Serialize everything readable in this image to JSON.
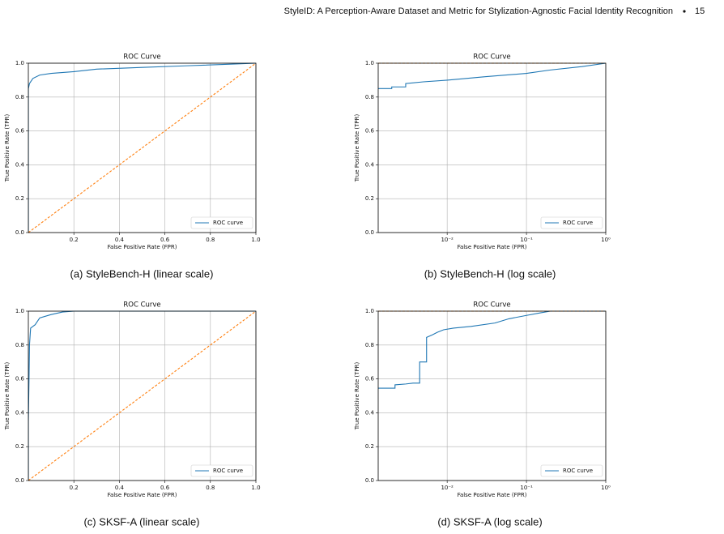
{
  "header": {
    "title": "StyleID: A Perception-Aware Dataset and Metric for Stylization-Agnostic Facial Identity Recognition",
    "page": "15"
  },
  "chart_data": [
    {
      "type": "line",
      "title": "ROC Curve",
      "caption": "(a) StyleBench-H (linear scale)",
      "xlabel": "False Positive Rate (FPR)",
      "ylabel": "True Positive Rate (TPR)",
      "xscale": "linear",
      "xlim": [
        0,
        1
      ],
      "ylim": [
        0,
        1
      ],
      "grid": true,
      "legend": "lower right",
      "xticks": [
        0.2,
        0.4,
        0.6,
        0.8,
        {
          "value": 1,
          "label": "1.0"
        }
      ],
      "yticks": [
        {
          "value": 0,
          "label": "0.0"
        },
        0.2,
        0.4,
        0.6,
        0.8,
        {
          "value": 1,
          "label": "1.0"
        }
      ],
      "series": [
        {
          "name": "ROC curve",
          "color": "#1f77b4",
          "x": [
            0,
            0,
            0.005,
            0.02,
            0.05,
            0.1,
            0.2,
            0.3,
            0.5,
            0.7,
            0.9,
            1
          ],
          "values": [
            0,
            0.85,
            0.88,
            0.91,
            0.93,
            0.94,
            0.95,
            0.965,
            0.975,
            0.985,
            0.995,
            1
          ]
        },
        {
          "color": "#ff7f0e",
          "dash": true,
          "x": [
            0,
            1
          ],
          "values": [
            0,
            1
          ]
        }
      ]
    },
    {
      "type": "line",
      "title": "ROC Curve",
      "caption": "(b) StyleBench-H (log scale)",
      "xlabel": "False Positive Rate (FPR)",
      "ylabel": "True Positive Rate (TPR)",
      "xscale": "log",
      "xlim": [
        0.00135,
        1
      ],
      "ylim": [
        0,
        1
      ],
      "grid": true,
      "legend": "lower right",
      "xticks": [
        {
          "value": 0.01,
          "label": "10⁻²"
        },
        {
          "value": 0.1,
          "label": "10⁻¹"
        },
        {
          "value": 1,
          "label": "10⁰"
        }
      ],
      "yticks": [
        {
          "value": 0,
          "label": "0.0"
        },
        0.2,
        0.4,
        0.6,
        0.8,
        {
          "value": 1,
          "label": "1.0"
        }
      ],
      "series": [
        {
          "name": "ROC curve",
          "color": "#1f77b4",
          "x": [
            0.00135,
            0.002,
            0.002,
            0.003,
            0.003,
            0.005,
            0.01,
            0.03,
            0.1,
            0.2,
            0.5,
            1
          ],
          "values": [
            0.85,
            0.85,
            0.86,
            0.86,
            0.88,
            0.89,
            0.9,
            0.92,
            0.94,
            0.96,
            0.98,
            1
          ]
        },
        {
          "color": "#ff7f0e",
          "dash": true,
          "x": [
            0.00135,
            1
          ],
          "values": [
            1,
            1
          ]
        }
      ]
    },
    {
      "type": "line",
      "title": "ROC Curve",
      "caption": "(c) SKSF-A (linear scale)",
      "xlabel": "False Positive Rate (FPR)",
      "ylabel": "True Positive Rate (TPR)",
      "xscale": "linear",
      "xlim": [
        0,
        1
      ],
      "ylim": [
        0,
        1
      ],
      "grid": true,
      "legend": "lower right",
      "xticks": [
        0.2,
        0.4,
        0.6,
        0.8,
        {
          "value": 1,
          "label": "1.0"
        }
      ],
      "yticks": [
        {
          "value": 0,
          "label": "0.0"
        },
        0.2,
        0.4,
        0.6,
        0.8,
        {
          "value": 1,
          "label": "1.0"
        }
      ],
      "series": [
        {
          "name": "ROC curve",
          "color": "#1f77b4",
          "x": [
            0,
            0,
            0.003,
            0.005,
            0.01,
            0.03,
            0.05,
            0.1,
            0.15,
            0.2,
            1
          ],
          "values": [
            0,
            0.35,
            0.6,
            0.8,
            0.9,
            0.92,
            0.96,
            0.98,
            0.995,
            1,
            1
          ]
        },
        {
          "color": "#ff7f0e",
          "dash": true,
          "x": [
            0,
            1
          ],
          "values": [
            0,
            1
          ]
        }
      ]
    },
    {
      "type": "line",
      "title": "ROC Curve",
      "caption": "(d) SKSF-A (log scale)",
      "xlabel": "False Positive Rate (FPR)",
      "ylabel": "True Positive Rate (TPR)",
      "xscale": "log",
      "xlim": [
        0.00135,
        1
      ],
      "ylim": [
        0,
        1
      ],
      "grid": true,
      "legend": "lower right",
      "xticks": [
        {
          "value": 0.01,
          "label": "10⁻²"
        },
        {
          "value": 0.1,
          "label": "10⁻¹"
        },
        {
          "value": 1,
          "label": "10⁰"
        }
      ],
      "yticks": [
        {
          "value": 0,
          "label": "0.0"
        },
        0.2,
        0.4,
        0.6,
        0.8,
        {
          "value": 1,
          "label": "1.0"
        }
      ],
      "series": [
        {
          "name": "ROC curve",
          "color": "#1f77b4",
          "x": [
            0.00135,
            0.0022,
            0.0022,
            0.003,
            0.0037,
            0.0045,
            0.0045,
            0.0055,
            0.0055,
            0.0065,
            0.0075,
            0.009,
            0.012,
            0.02,
            0.04,
            0.06,
            0.1,
            0.15,
            0.2,
            1
          ],
          "values": [
            0.545,
            0.545,
            0.565,
            0.57,
            0.575,
            0.575,
            0.7,
            0.7,
            0.845,
            0.86,
            0.875,
            0.89,
            0.9,
            0.91,
            0.93,
            0.955,
            0.975,
            0.99,
            1,
            1
          ]
        },
        {
          "color": "#ff7f0e",
          "dash": true,
          "x": [
            0.00135,
            1
          ],
          "values": [
            1,
            1
          ]
        }
      ]
    }
  ]
}
